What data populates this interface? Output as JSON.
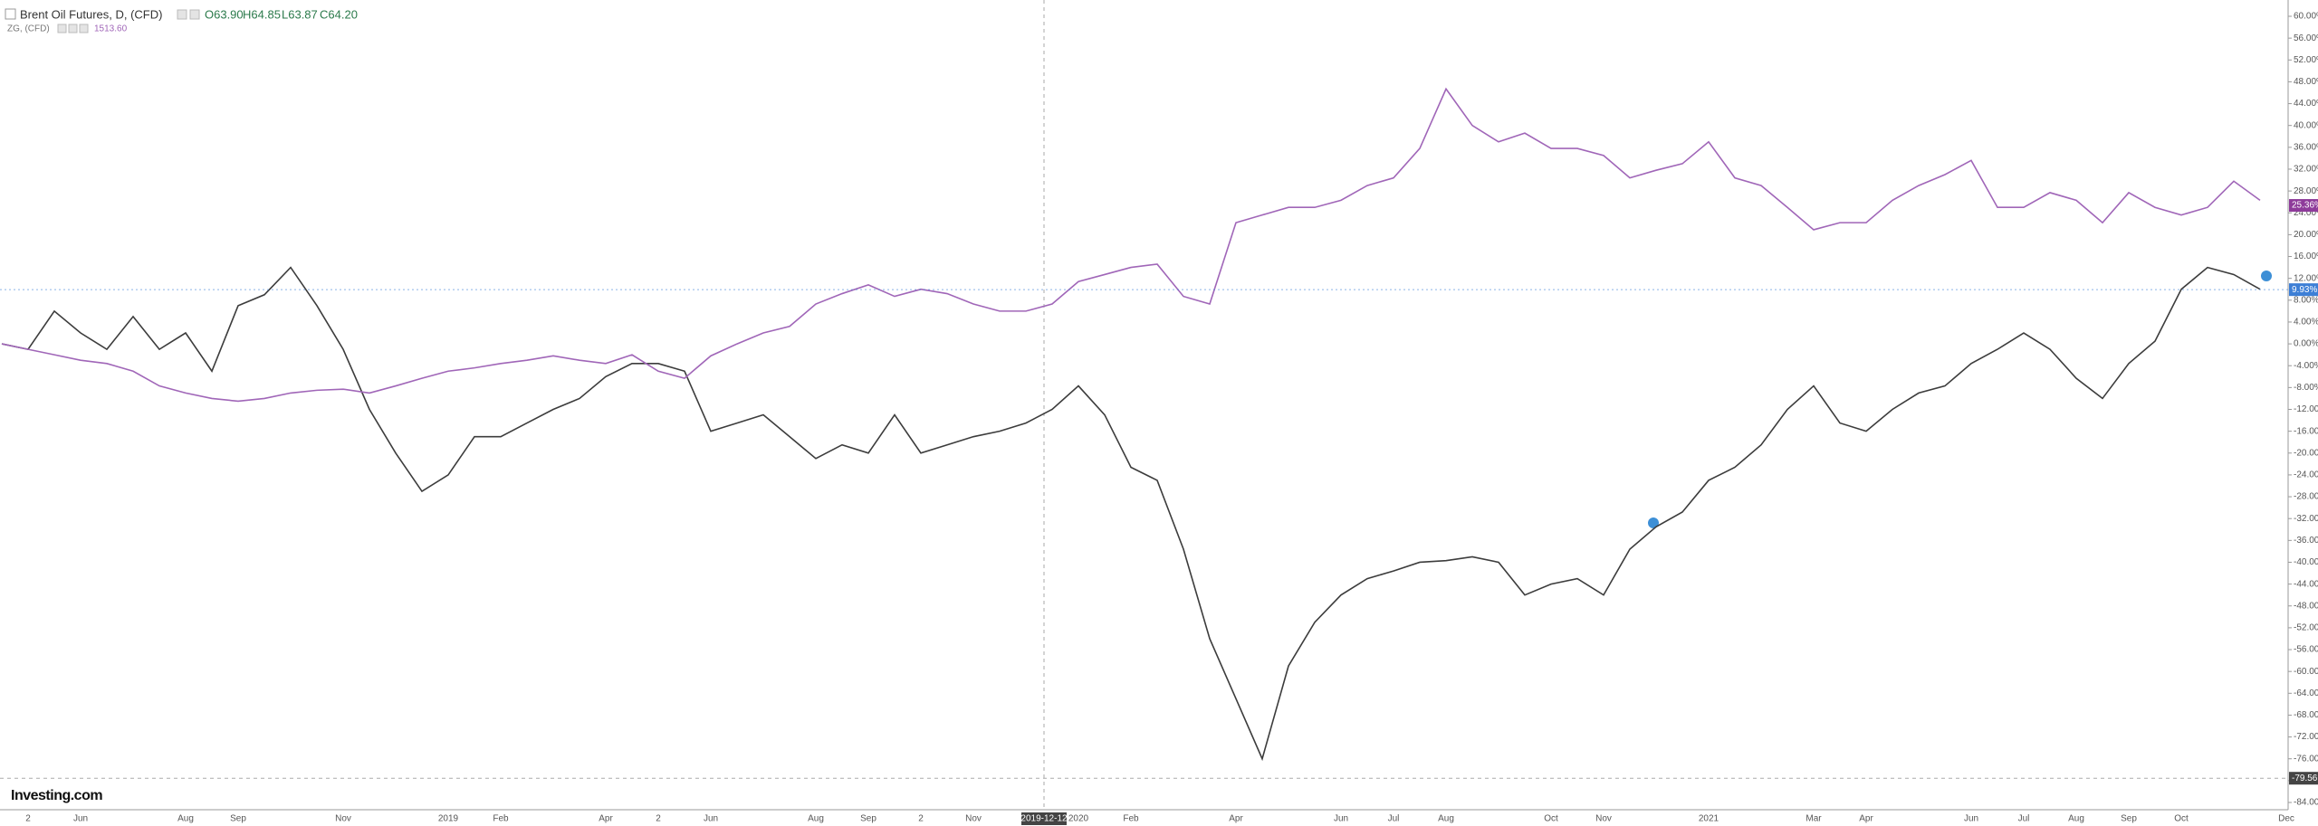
{
  "chart_data": {
    "type": "line",
    "header": {
      "symbol": "Brent Oil Futures, D, (CFD)",
      "open": "O63.90",
      "high": "H64.85",
      "low": "L63.87",
      "close": "C64.20",
      "compare_symbol": "ZG, (CFD)",
      "compare_value": "1513.60"
    },
    "logo": "Investing.com",
    "categories": [
      null,
      "2",
      null,
      "Jun",
      null,
      null,
      null,
      "Aug",
      null,
      "Sep",
      null,
      null,
      null,
      "Nov",
      null,
      null,
      null,
      "2019",
      null,
      "Feb",
      null,
      null,
      null,
      "Apr",
      null,
      "2",
      null,
      "Jun",
      null,
      null,
      null,
      "Aug",
      null,
      "Sep",
      null,
      "2",
      null,
      "Nov",
      null,
      null,
      null,
      "2020",
      null,
      "Feb",
      null,
      null,
      null,
      "Apr",
      null,
      null,
      null,
      "Jun",
      null,
      "Jul",
      null,
      "Aug",
      null,
      null,
      null,
      "Oct",
      null,
      "Nov",
      null,
      null,
      null,
      "2021",
      null,
      null,
      null,
      "Mar",
      null,
      "Apr",
      null,
      null,
      null,
      "Jun",
      null,
      "Jul",
      null,
      "Aug",
      null,
      "Sep",
      null,
      "Oct",
      null,
      null,
      null,
      "Dec"
    ],
    "series": [
      {
        "name": "Brent Oil Futures",
        "color": "#3c3c3c",
        "values": [
          0,
          -1,
          6,
          2,
          -1,
          5,
          -1,
          2,
          -5,
          7,
          9,
          14,
          7,
          -1,
          -12,
          -20,
          -27,
          -24,
          -17,
          -17,
          -14.5,
          -12,
          -10,
          -6,
          -3.6,
          -3.6,
          -5,
          -16,
          -14.5,
          -13,
          -17,
          -21,
          -18.5,
          -20,
          -13,
          -20,
          -18.5,
          -17,
          -16,
          -14.5,
          -12,
          -7.7,
          -13,
          -22.6,
          -25,
          -37.6,
          -54,
          -65,
          -76,
          -59,
          -51,
          -46,
          -43,
          -41.6,
          -40,
          -39.7,
          -39,
          -40,
          -46,
          -44,
          -43,
          -46,
          -37.6,
          -33.5,
          -30.8,
          -25,
          -22.6,
          -18.5,
          -12,
          -7.7,
          -14.5,
          -16,
          -12,
          -9,
          -7.7,
          -3.6,
          -1,
          2,
          -1,
          -6.3,
          -10,
          -3.6,
          0.5,
          10,
          14,
          12.7,
          10,
          null
        ]
      },
      {
        "name": "ZG",
        "color": "#a066b8",
        "values": [
          0,
          -1,
          -2,
          -3,
          -3.6,
          -5,
          -7.7,
          -9,
          -10,
          -10.5,
          -10,
          -9,
          -8.5,
          -8.3,
          -9,
          -7.7,
          -6.3,
          -5,
          -4.4,
          -3.6,
          -3,
          -2.2,
          -3,
          -3.6,
          -2,
          -5,
          -6.3,
          -2.2,
          0,
          2,
          3.2,
          7.3,
          9.2,
          10.8,
          8.7,
          10,
          9.2,
          7.3,
          6,
          6,
          7.3,
          11.4,
          12.7,
          14,
          14.6,
          8.7,
          7.3,
          22.2,
          23.6,
          25,
          25,
          26.3,
          29,
          30.4,
          35.8,
          46.7,
          40,
          37,
          38.6,
          35.8,
          35.8,
          34.5,
          30.4,
          31.8,
          33,
          37,
          30.4,
          29,
          25,
          20.9,
          22.2,
          22.2,
          26.3,
          29,
          31,
          33.6,
          25,
          25,
          27.7,
          26.3,
          22.2,
          27.7,
          25,
          23.6,
          25,
          29.8,
          26.3,
          null
        ]
      }
    ],
    "last_labels": [
      {
        "value": 25.36,
        "label": "25.36%",
        "color": "#8e3b9a"
      },
      {
        "value": 9.93,
        "label": "9.93%",
        "color": "#3d7fd6"
      }
    ],
    "crosshair": {
      "x_label": "2019-12-12",
      "y": -79.56
    },
    "ylim": [
      -84,
      60
    ],
    "yticks": [
      {
        "value": 60,
        "label": "60.00%"
      },
      {
        "value": 56,
        "label": "56.00%"
      },
      {
        "value": 52,
        "label": "52.00%"
      },
      {
        "value": 48,
        "label": "48.00%"
      },
      {
        "value": 44,
        "label": "44.00%"
      },
      {
        "value": 40,
        "label": "40.00%"
      },
      {
        "value": 36,
        "label": "36.00%"
      },
      {
        "value": 32,
        "label": "32.00%"
      },
      {
        "value": 28,
        "label": "28.00%"
      },
      {
        "value": 24,
        "label": "24.00%"
      },
      {
        "value": 20,
        "label": "20.00%"
      },
      {
        "value": 16,
        "label": "16.00%"
      },
      {
        "value": 12,
        "label": "12.00%"
      },
      {
        "value": 8,
        "label": "8.00%"
      },
      {
        "value": 4,
        "label": "4.00%"
      },
      {
        "value": 0,
        "label": "0.00%"
      },
      {
        "value": -4,
        "label": "-4.00%"
      },
      {
        "value": -8,
        "label": "-8.00%"
      },
      {
        "value": -12,
        "label": "-12.00%"
      },
      {
        "value": -16,
        "label": "-16.00%"
      },
      {
        "value": -20,
        "label": "-20.00%"
      },
      {
        "value": -24,
        "label": "-24.00%"
      },
      {
        "value": -28,
        "label": "-28.00%"
      },
      {
        "value": -32,
        "label": "-32.00%"
      },
      {
        "value": -36,
        "label": "-36.00%"
      },
      {
        "value": -40,
        "label": "-40.00%"
      },
      {
        "value": -44,
        "label": "-44.00%"
      },
      {
        "value": -48,
        "label": "-48.00%"
      },
      {
        "value": -52,
        "label": "-52.00%"
      },
      {
        "value": -56,
        "label": "-56.00%"
      },
      {
        "value": -60,
        "label": "-60.00%"
      },
      {
        "value": -64,
        "label": "-64.00%"
      },
      {
        "value": -68,
        "label": "-68.00%"
      },
      {
        "value": -72,
        "label": "-72.00%"
      },
      {
        "value": -76,
        "label": "-76.00%"
      },
      {
        "value": -80,
        "label": "-80.00%"
      },
      {
        "value": -84,
        "label": "-84.00%"
      }
    ],
    "grid": false
  }
}
